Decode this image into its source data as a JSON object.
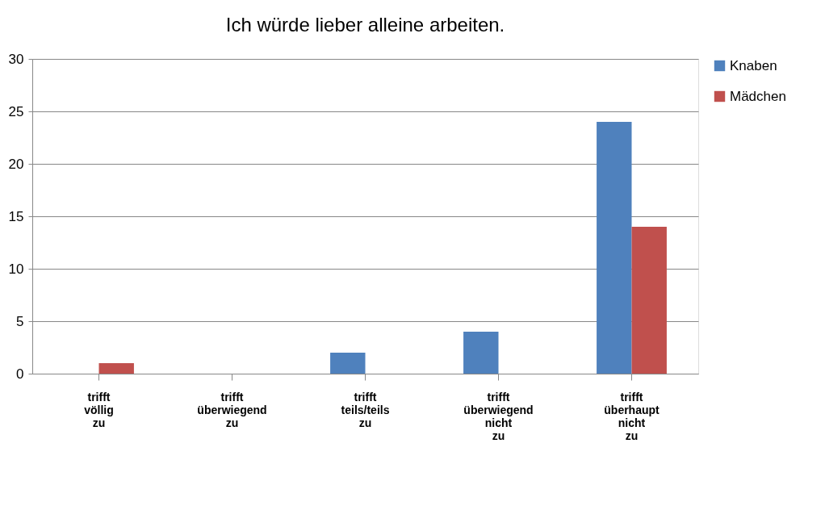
{
  "chart_data": {
    "type": "bar",
    "title": "Ich würde lieber alleine arbeiten.",
    "categories": [
      "trifft\nvöllig\nzu",
      "trifft\nüberwiegend\nzu",
      "trifft\nteils/teils\nzu",
      "trifft\nüberwiegend\nnicht\nzu",
      "trifft\nüberhaupt\nnicht\nzu"
    ],
    "series": [
      {
        "name": "Knaben",
        "color": "#4f81bd",
        "values": [
          0,
          0,
          2,
          4,
          24
        ]
      },
      {
        "name": "Mädchen",
        "color": "#c0504d",
        "values": [
          1,
          0,
          0,
          0,
          14
        ]
      }
    ],
    "ylim": [
      0,
      30
    ],
    "yticks": [
      0,
      5,
      10,
      15,
      20,
      25,
      30
    ],
    "grid": "y",
    "legend": "right"
  }
}
